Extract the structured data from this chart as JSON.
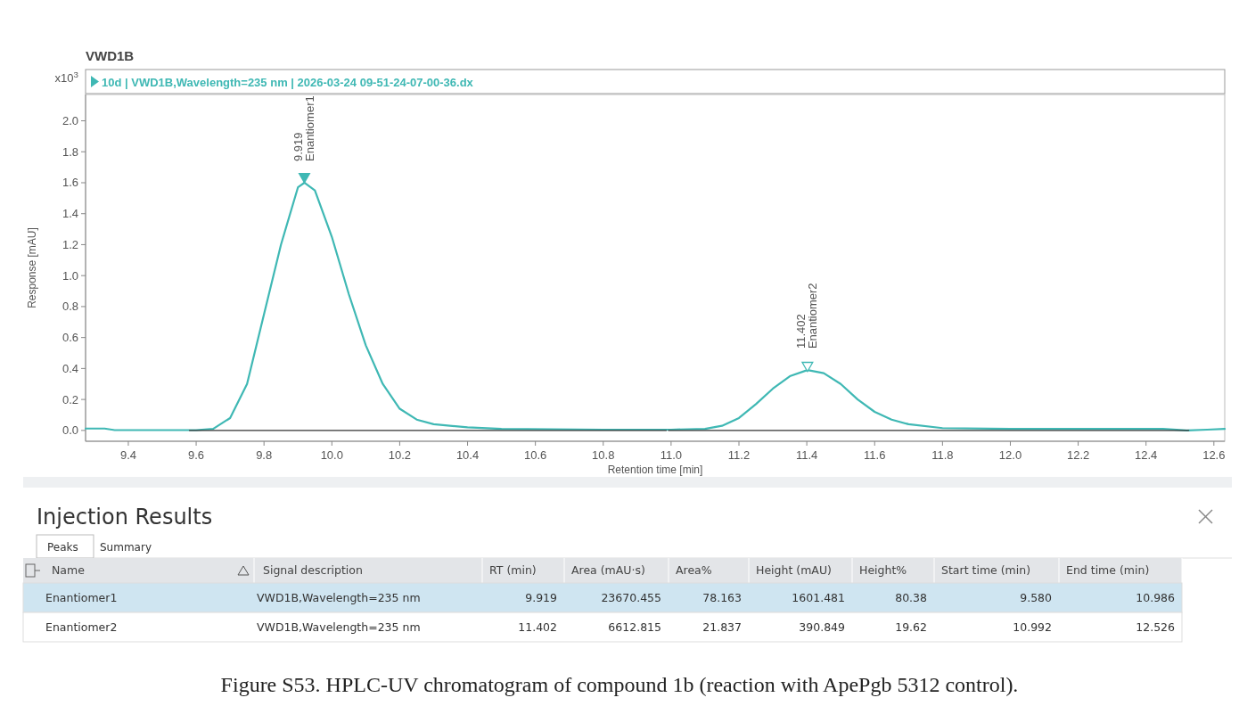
{
  "chart_data": [
    {
      "type": "line",
      "title": "VWD1B",
      "xlabel": "Retention time [min]",
      "ylabel": "Response [mAU]",
      "legend": "top",
      "grid": false,
      "xlim": [
        9.274,
        12.632
      ],
      "xticks": [
        9.4,
        9.6,
        9.8,
        {
          "value": 10,
          "label": "10.0"
        },
        10.2,
        10.4,
        10.6,
        10.8,
        {
          "value": 11,
          "label": "11.0"
        },
        11.2,
        11.4,
        11.6,
        11.8,
        {
          "value": 12,
          "label": "12.0"
        },
        12.2,
        12.4,
        12.6
      ],
      "ylim": [
        -0.07,
        2.17
      ],
      "yticks": [
        {
          "value": 0,
          "label": "0.0"
        },
        0.2,
        0.4,
        0.6,
        0.8,
        {
          "value": 1,
          "label": "1.0"
        },
        1.2,
        1.4,
        1.6,
        1.8,
        {
          "value": 2,
          "label": "2.0"
        }
      ],
      "series": [
        {
          "name": "10d | VWD1B,Wavelength=235 nm | 2026-03-24 09-51-24-07-00-36.dx",
          "type": "line",
          "color": "#3fb8b4",
          "x": [
            9.274,
            9.33,
            9.36,
            9.5,
            9.6,
            9.65,
            9.7,
            9.75,
            9.8,
            9.85,
            9.9,
            9.919,
            9.95,
            10.0,
            10.05,
            10.1,
            10.15,
            10.2,
            10.25,
            10.3,
            10.4,
            10.5,
            10.8,
            11.0,
            11.1,
            11.15,
            11.2,
            11.25,
            11.3,
            11.35,
            11.402,
            11.45,
            11.5,
            11.55,
            11.6,
            11.65,
            11.7,
            11.8,
            12.0,
            12.45,
            12.52,
            12.58,
            12.632
          ],
          "values": [
            0.012,
            0.012,
            0.002,
            0.002,
            0.002,
            0.01,
            0.08,
            0.3,
            0.75,
            1.2,
            1.57,
            1.6,
            1.55,
            1.25,
            0.88,
            0.55,
            0.3,
            0.14,
            0.07,
            0.04,
            0.02,
            0.01,
            0.005,
            0.005,
            0.01,
            0.03,
            0.08,
            0.17,
            0.27,
            0.35,
            0.39,
            0.37,
            0.3,
            0.2,
            0.12,
            0.07,
            0.04,
            0.015,
            0.01,
            0.01,
            0,
            0.005,
            0.01
          ]
        },
        {
          "type": "line",
          "color": "#333333",
          "x": [
            9.58,
            10.986,
            10.989,
            10.992,
            12.526
          ],
          "values": [
            0,
            0,
            null,
            0,
            0
          ]
        },
        {
          "type": "scatter",
          "marker": "triangle",
          "color": "#3fb8b4",
          "x": [
            9.919,
            11.402
          ],
          "values": [
            1.64,
            0.42
          ]
        }
      ],
      "annotations": [
        "x10$^{3}$",
        {
          "text": "9.919\nEnantiomer1",
          "x": 9.919,
          "y": 1.6
        },
        {
          "text": "11.402\nEnantiomer2",
          "x": 11.402,
          "y": 0.39
        },
        "Figure S53. HPLC-UV chromatogram of compound 1b (reaction with ApePgb 5312 control)."
      ]
    },
    {
      "type": "other",
      "title": "Injection Results",
      "categories": [
        "Name",
        "Signal description",
        "RT (min)",
        "Area (mAU·s)",
        "Area%",
        "Height (mAU)",
        "Height%",
        "Start time (min)",
        "End time (min)"
      ],
      "annotations": [
        "Peaks",
        "Summary",
        "Enantiomer1",
        "VWD1B,Wavelength=235 nm",
        "9.919",
        "23670.455",
        "78.163",
        "1601.481",
        "80.38",
        "9.580",
        "10.986",
        "Enantiomer2",
        "VWD1B,Wavelength=235 nm",
        "11.402",
        "6612.815",
        "21.837",
        "390.849",
        "19.62",
        "10.992",
        "12.526"
      ]
    }
  ]
}
